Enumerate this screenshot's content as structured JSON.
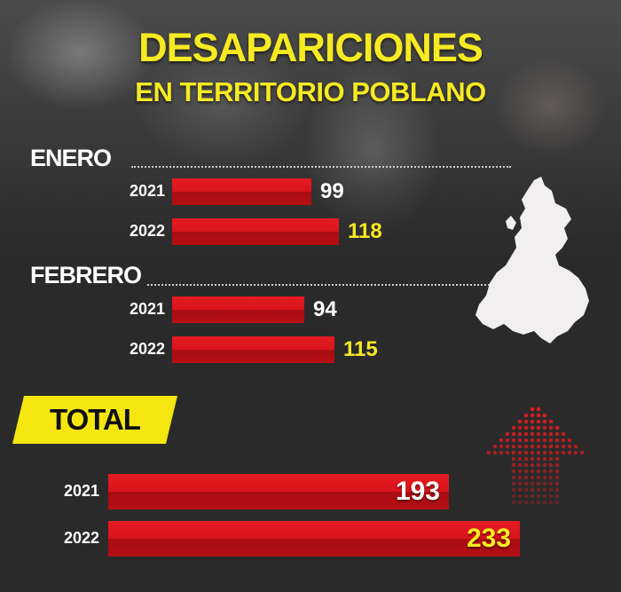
{
  "title_line1": "DESAPARICIONES",
  "title_line2": "EN TERRITORIO POBLANO",
  "colors": {
    "accent": "#f6ea22",
    "bar": "#d8141b",
    "background": "#2a2a2a"
  },
  "icons": {
    "map": "puebla-state-map-icon",
    "arrow": "up-arrow-icon"
  },
  "chart_data": [
    {
      "type": "bar",
      "title": "ENERO",
      "categories": [
        "2021",
        "2022"
      ],
      "values": [
        99,
        118
      ],
      "labels": [
        "99",
        "118"
      ]
    },
    {
      "type": "bar",
      "title": "FEBRERO",
      "categories": [
        "2021",
        "2022"
      ],
      "values": [
        94,
        115
      ],
      "labels": [
        "94",
        "115"
      ]
    },
    {
      "type": "bar",
      "title": "TOTAL",
      "categories": [
        "2021",
        "2022"
      ],
      "values": [
        193,
        233
      ],
      "labels": [
        "193",
        "233"
      ]
    }
  ]
}
